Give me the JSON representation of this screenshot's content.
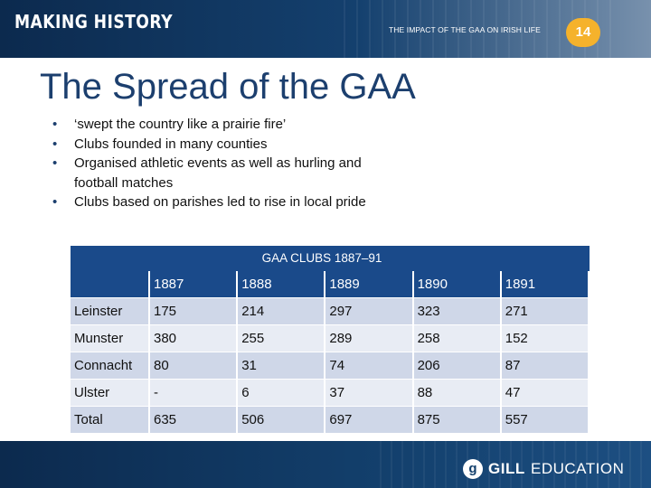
{
  "header": {
    "logo": "MAKING HISTORY",
    "section": "THE IMPACT OF THE GAA ON IRISH LIFE",
    "page_number": "14",
    "colors": {
      "banner": "#0c2a4e",
      "badge": "#f5b22c"
    }
  },
  "slide": {
    "title": "The Spread of the GAA",
    "bullets": [
      "‘swept the country like a prairie fire’",
      "Clubs founded in many counties",
      "Organised athletic events as well as hurling and football matches",
      "Clubs based on parishes led to rise in local pride"
    ]
  },
  "table": {
    "caption": "GAA CLUBS 1887–91",
    "columns": [
      "",
      "1887",
      "1888",
      "1889",
      "1890",
      "1891"
    ],
    "rows": [
      [
        "Leinster",
        "175",
        "214",
        "297",
        "323",
        "271"
      ],
      [
        "Munster",
        "380",
        "255",
        "289",
        "258",
        "152"
      ],
      [
        "Connacht",
        "80",
        "31",
        "74",
        "206",
        "87"
      ],
      [
        "Ulster",
        "-",
        "6",
        "37",
        "88",
        "47"
      ],
      [
        "Total",
        "635",
        "506",
        "697",
        "875",
        "557"
      ]
    ]
  },
  "footer": {
    "brand_icon": "g",
    "brand_bold": "GILL",
    "brand_light": "EDUCATION"
  }
}
